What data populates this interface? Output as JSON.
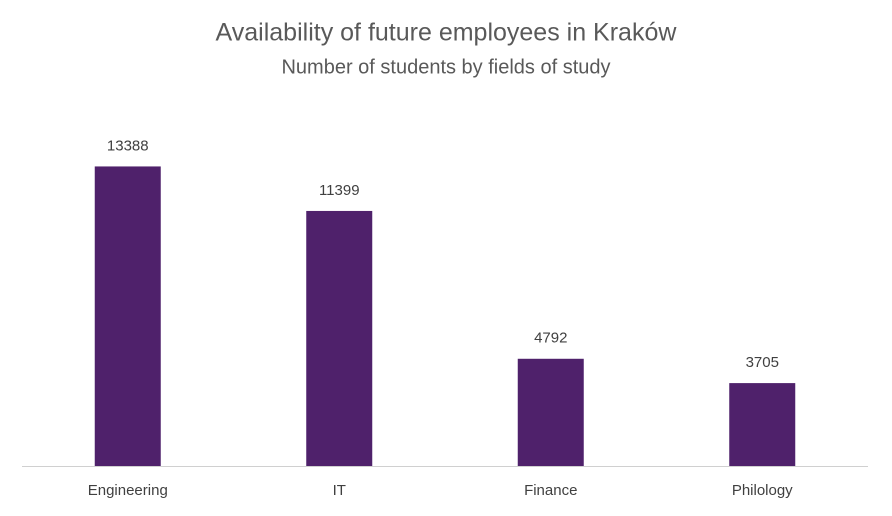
{
  "chart_data": {
    "type": "bar",
    "title": "Availability of future employees in Kraków",
    "subtitle": "Number of students by fields of study",
    "categories": [
      "Engineering",
      "IT",
      "Finance",
      "Philology"
    ],
    "values": [
      13388,
      11399,
      4792,
      3705
    ],
    "color": "#4f216b",
    "ylim": [
      0,
      16000
    ]
  }
}
